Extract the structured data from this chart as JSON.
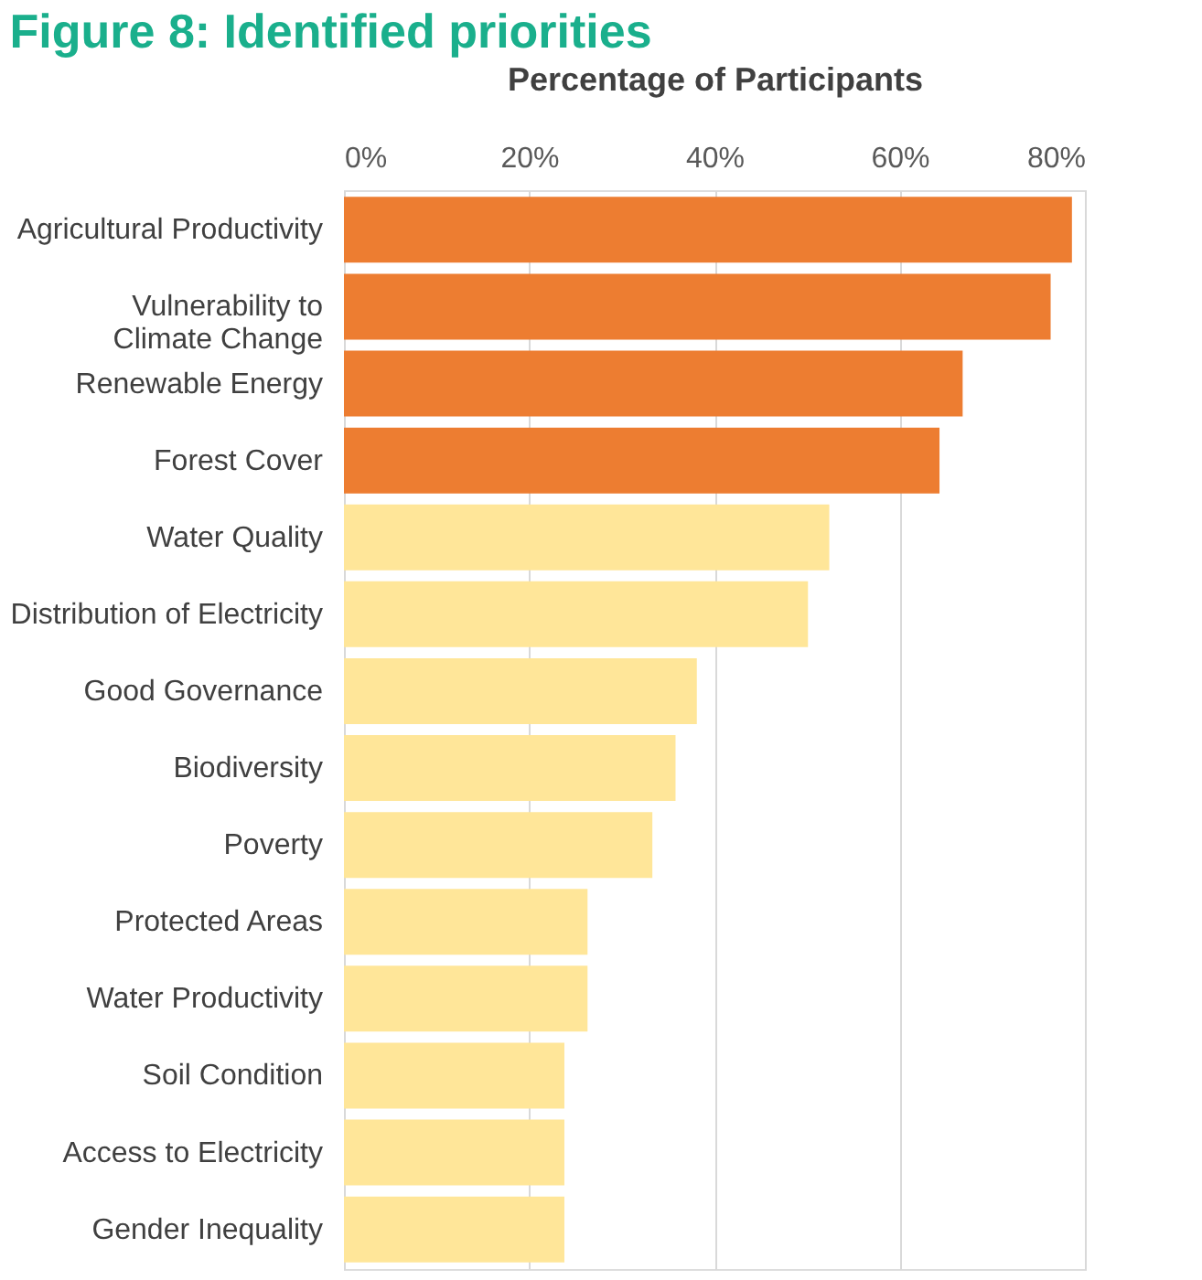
{
  "chart_data": {
    "type": "bar",
    "orientation": "horizontal",
    "title": "Figure 8: Identified priorities",
    "xlabel": "Percentage  of Participants",
    "categories": [
      "Agricultural Productivity",
      "Vulnerability to\nClimate Change",
      "Renewable Energy",
      "Forest Cover",
      "Water Quality",
      "Distribution of Electricity",
      "Good Governance",
      "Biodiversity",
      "Poverty",
      "Protected Areas",
      "Water Productivity",
      "Soil Condition",
      "Access to Electricity",
      "Gender Inequality"
    ],
    "values": [
      78.6,
      76.3,
      66.8,
      64.3,
      52.4,
      50.1,
      38.1,
      35.8,
      33.3,
      26.3,
      26.3,
      23.8,
      23.8,
      23.8
    ],
    "colors": [
      "#ed7d31",
      "#ed7d31",
      "#ed7d31",
      "#ed7d31",
      "#ffe699",
      "#ffe699",
      "#ffe699",
      "#ffe699",
      "#ffe699",
      "#ffe699",
      "#ffe699",
      "#ffe699",
      "#ffe699",
      "#ffe699"
    ],
    "xlim": [
      0,
      80
    ],
    "xticks": [
      {
        "value": 0,
        "label": "0%"
      },
      {
        "value": 20,
        "label": "20%"
      },
      {
        "value": 40,
        "label": "40%"
      },
      {
        "value": 60,
        "label": "60%"
      },
      {
        "value": 80,
        "label": "80%"
      }
    ],
    "grid": "x"
  }
}
